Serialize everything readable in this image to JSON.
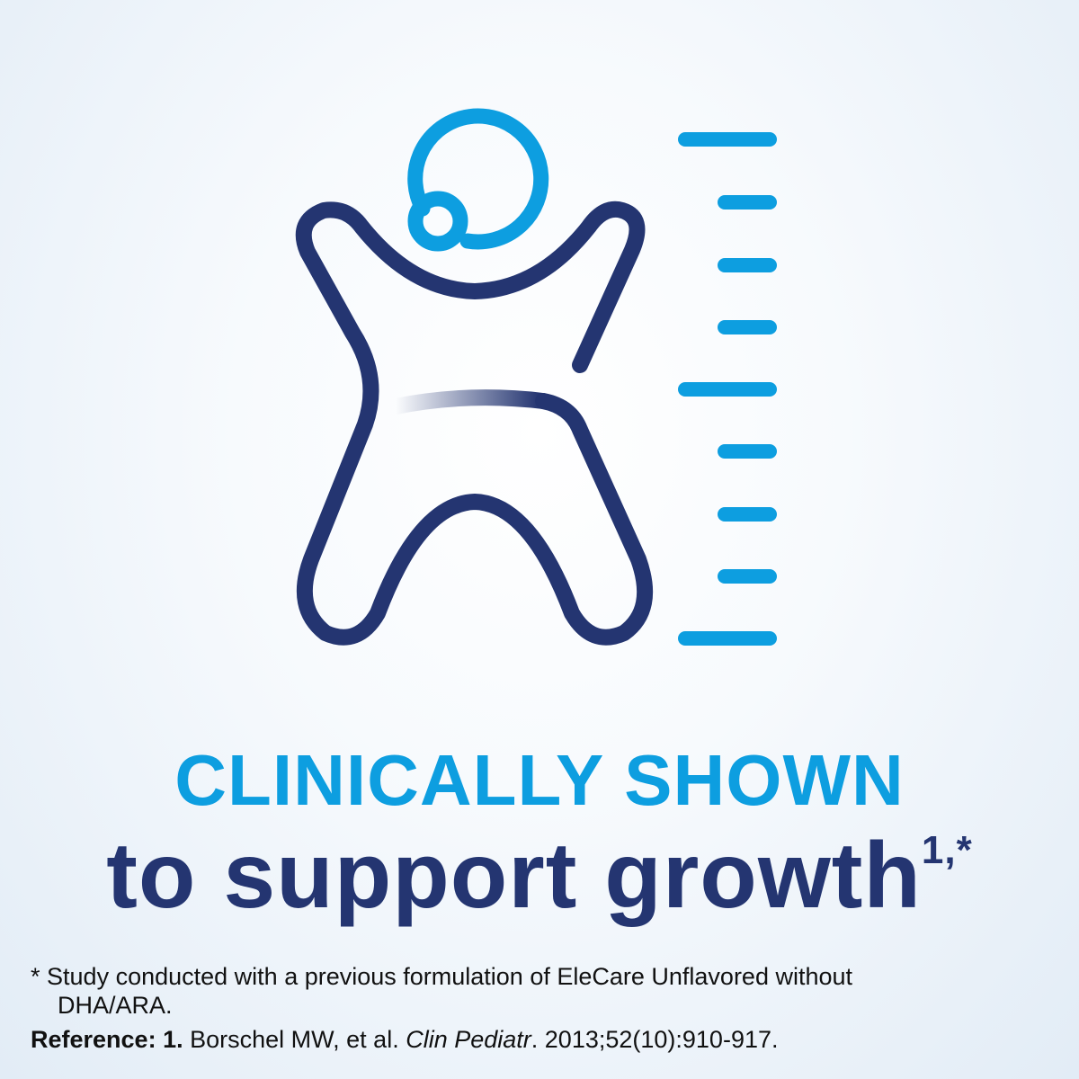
{
  "headline": {
    "line1": "CLINICALLY SHOWN",
    "line2": "to support growth",
    "superscript": "1,*"
  },
  "footnote": {
    "marker": "*",
    "text_line1": "Study conducted with a previous formulation of EleCare Unflavored without",
    "text_line2": "DHA/ARA."
  },
  "reference": {
    "label": "Reference:",
    "number": "1.",
    "authors": "Borschel MW, et al.",
    "journal": "Clin Pediatr",
    "citation": ". 2013;52(10):910-917."
  },
  "colors": {
    "accent_blue": "#0d9ee0",
    "navy": "#243571"
  },
  "icons": [
    "baby-growth-icon",
    "height-ruler-icon"
  ]
}
